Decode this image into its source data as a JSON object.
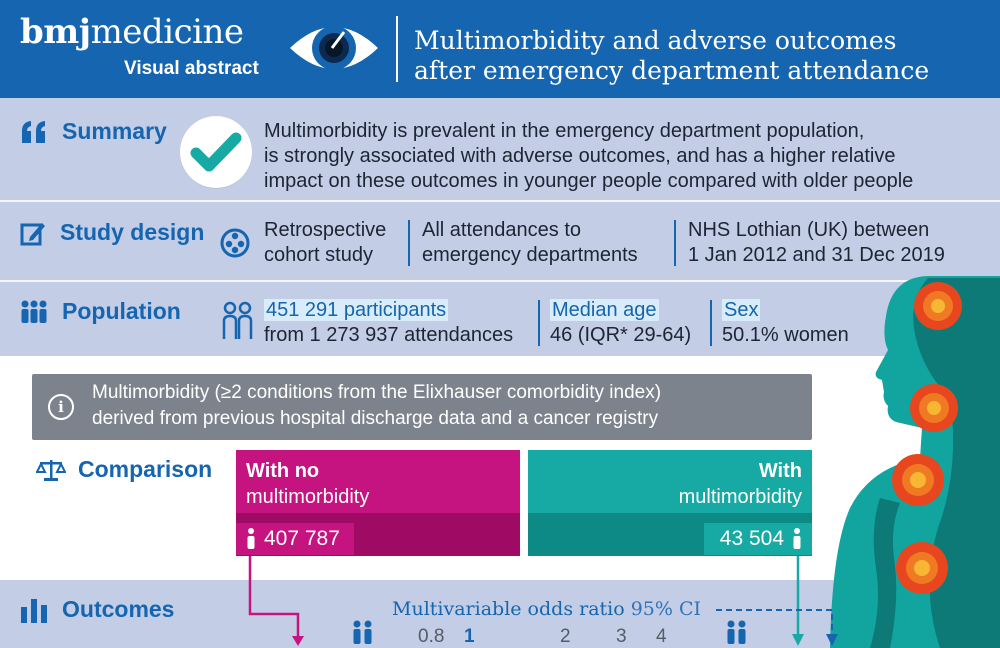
{
  "header": {
    "brand_bold": "bmj",
    "brand_rest": "medicine",
    "subtitle": "Visual abstract",
    "title_line1": "Multimorbidity and adverse outcomes",
    "title_line2": "after emergency department attendance"
  },
  "summary": {
    "label": "Summary",
    "line1": "Multimorbidity is prevalent in the emergency department population,",
    "line2": "is strongly associated with adverse outcomes, and has a higher relative",
    "line3": "impact on these outcomes in younger people compared with older people"
  },
  "study_design": {
    "label": "Study design",
    "col1_line1": "Retrospective",
    "col1_line2": "cohort study",
    "col2_line1": "All attendances to",
    "col2_line2": "emergency departments",
    "col3_line1": "NHS Lothian (UK) between",
    "col3_line2": "1 Jan 2012 and 31 Dec 2019"
  },
  "population": {
    "label": "Population",
    "participants": "451 291 participants",
    "attendances": "from 1 273 937 attendances",
    "median_label": "Median age",
    "median_value": "46 (IQR* 29-64)",
    "sex_label": "Sex",
    "sex_value": "50.1% women"
  },
  "info": {
    "line1": "Multimorbidity (≥2 conditions from the Elixhauser comorbidity index)",
    "line2": "derived from previous hospital discharge data and a cancer registry"
  },
  "comparison": {
    "label": "Comparison",
    "no_line1": "With no",
    "no_line2": "multimorbidity",
    "no_count": "407 787",
    "with_line1": "With",
    "with_line2": "multimorbidity",
    "with_count": "43 504"
  },
  "outcomes": {
    "label": "Outcomes",
    "title": "Multivariable odds ratio",
    "ci": "95% CI",
    "ticks": [
      "0.8",
      "1",
      "2",
      "3",
      "4"
    ]
  },
  "colors": {
    "brand_blue": "#1565b0",
    "magenta": "#c5137f",
    "teal": "#17aaa4"
  }
}
